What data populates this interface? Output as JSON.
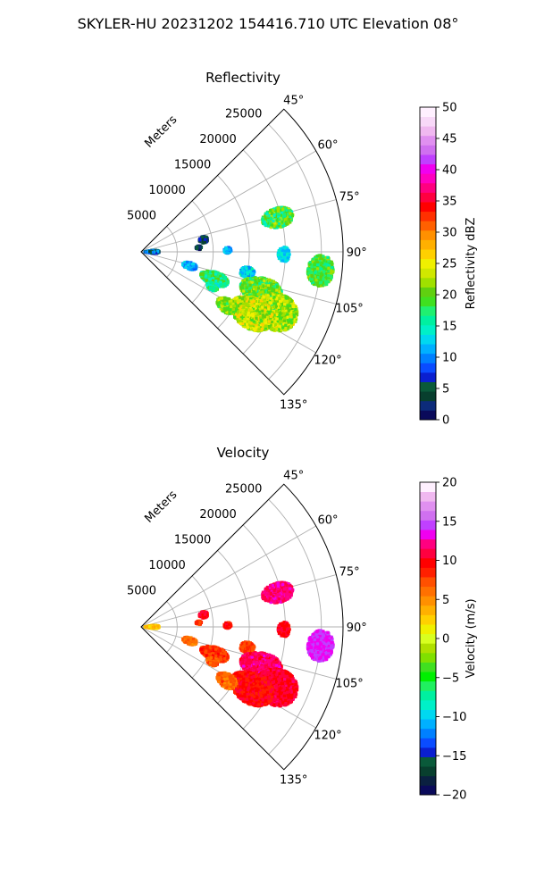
{
  "figure": {
    "suptitle": "SKYLER-HU  20231202  154416.710 UTC Elevation 08°"
  },
  "chart_data": [
    {
      "type": "heatmap",
      "projection": "polar-sector",
      "title": "Reflectivity",
      "radial_label": "Meters",
      "radial_ticks": [
        "5000",
        "10000",
        "15000",
        "20000",
        "25000"
      ],
      "azimuth_ticks": [
        "45°",
        "60°",
        "75°",
        "90°",
        "105°",
        "120°",
        "135°"
      ],
      "azimuth_range_deg": [
        45,
        135
      ],
      "range_max_m": 28000,
      "grid": true,
      "colorbar": {
        "label": "Reflectivity dBZ",
        "min": 0,
        "max": 50,
        "ticks": [
          "0",
          "5",
          "10",
          "15",
          "20",
          "25",
          "30",
          "35",
          "40",
          "45",
          "50"
        ],
        "colors": [
          "#0a0a5a",
          "#0c2b7a",
          "#083f2e",
          "#0a5a3a",
          "#0a1fd0",
          "#0a4cff",
          "#0080ff",
          "#00b0ff",
          "#00d8f0",
          "#00f0c8",
          "#00f0a0",
          "#20f070",
          "#40e020",
          "#60d010",
          "#a0e000",
          "#d0e800",
          "#f0f000",
          "#ffd000",
          "#ffb000",
          "#ff9000",
          "#ff6000",
          "#ff3000",
          "#ff0000",
          "#ff0040",
          "#ff0080",
          "#ff00c0",
          "#f000f0",
          "#c040ff",
          "#d070f0",
          "#e090f0",
          "#f0b8f0",
          "#f8d8f8",
          "#fff0ff"
        ]
      },
      "echoes": [
        {
          "az": 76,
          "r": 19500,
          "ar": 2200,
          "aa": 4,
          "value": 19,
          "spread": 5
        },
        {
          "az": 79,
          "r": 8800,
          "ar": 600,
          "aa": 3,
          "value": 4,
          "spread": 3
        },
        {
          "az": 86,
          "r": 8000,
          "ar": 400,
          "aa": 2,
          "value": 3,
          "spread": 2
        },
        {
          "az": 90,
          "r": 1500,
          "ar": 1000,
          "aa": 8,
          "value": 8,
          "spread": 6
        },
        {
          "az": 89,
          "r": 12000,
          "ar": 500,
          "aa": 2,
          "value": 11,
          "spread": 3
        },
        {
          "az": 91,
          "r": 19800,
          "ar": 800,
          "aa": 3,
          "value": 13,
          "spread": 2
        },
        {
          "az": 96,
          "r": 25000,
          "ar": 1800,
          "aa": 5,
          "value": 19,
          "spread": 3
        },
        {
          "az": 101,
          "r": 15000,
          "ar": 1000,
          "aa": 3,
          "value": 13,
          "spread": 3
        },
        {
          "az": 106,
          "r": 7000,
          "ar": 1000,
          "aa": 4,
          "value": 11,
          "spread": 3
        },
        {
          "az": 110,
          "r": 10800,
          "ar": 2000,
          "aa": 5,
          "value": 17,
          "spread": 4
        },
        {
          "az": 108,
          "r": 17500,
          "ar": 3000,
          "aa": 6,
          "value": 20,
          "spread": 4
        },
        {
          "az": 114,
          "r": 20500,
          "ar": 3000,
          "aa": 7,
          "value": 22,
          "spread": 4
        },
        {
          "az": 119,
          "r": 17500,
          "ar": 3200,
          "aa": 7,
          "value": 23,
          "spread": 4
        },
        {
          "az": 122,
          "r": 14000,
          "ar": 1500,
          "aa": 4,
          "value": 21,
          "spread": 3
        },
        {
          "az": 116,
          "r": 11000,
          "ar": 800,
          "aa": 3,
          "value": 16,
          "spread": 3
        }
      ]
    },
    {
      "type": "heatmap",
      "projection": "polar-sector",
      "title": "Velocity",
      "radial_label": "Meters",
      "radial_ticks": [
        "5000",
        "10000",
        "15000",
        "20000",
        "25000"
      ],
      "azimuth_ticks": [
        "45°",
        "60°",
        "75°",
        "90°",
        "105°",
        "120°",
        "135°"
      ],
      "azimuth_range_deg": [
        45,
        135
      ],
      "range_max_m": 28000,
      "grid": true,
      "colorbar": {
        "label": "Velocity (m/s)",
        "min": -20,
        "max": 20,
        "ticks": [
          "−20",
          "−15",
          "−10",
          "−5",
          "0",
          "5",
          "10",
          "15",
          "20"
        ],
        "colors": [
          "#0a0a5a",
          "#0a2040",
          "#083f2e",
          "#0a5a3a",
          "#0a1fd0",
          "#0a4cff",
          "#0080ff",
          "#00b0ff",
          "#00d8f0",
          "#00f0c8",
          "#00f0a0",
          "#20f060",
          "#00f000",
          "#40e020",
          "#80e000",
          "#b0e000",
          "#d8ff20",
          "#f0f000",
          "#ffd000",
          "#ffb000",
          "#ff9000",
          "#ff7000",
          "#ff5000",
          "#ff2000",
          "#ff0000",
          "#ff0040",
          "#ff0080",
          "#f000f0",
          "#c040ff",
          "#d070f0",
          "#e090f0",
          "#f0b8f0",
          "#fff0ff"
        ]
      },
      "echoes": [
        {
          "az": 76,
          "r": 19500,
          "ar": 2200,
          "aa": 4,
          "value": 12,
          "spread": 1.2
        },
        {
          "az": 79,
          "r": 8800,
          "ar": 600,
          "aa": 3,
          "value": 10,
          "spread": 1.2
        },
        {
          "az": 86,
          "r": 8000,
          "ar": 400,
          "aa": 2,
          "value": 8,
          "spread": 1
        },
        {
          "az": 90,
          "r": 1500,
          "ar": 1000,
          "aa": 8,
          "value": 3,
          "spread": 1.5
        },
        {
          "az": 89,
          "r": 12000,
          "ar": 500,
          "aa": 2,
          "value": 9,
          "spread": 1.5
        },
        {
          "az": 91,
          "r": 19800,
          "ar": 800,
          "aa": 3,
          "value": 10,
          "spread": 1
        },
        {
          "az": 96,
          "r": 25000,
          "ar": 1800,
          "aa": 5,
          "value": 14,
          "spread": 1
        },
        {
          "az": 101,
          "r": 15000,
          "ar": 1000,
          "aa": 3,
          "value": 8,
          "spread": 1
        },
        {
          "az": 106,
          "r": 7000,
          "ar": 1000,
          "aa": 4,
          "value": 6,
          "spread": 1.5
        },
        {
          "az": 110,
          "r": 10800,
          "ar": 2000,
          "aa": 5,
          "value": 8,
          "spread": 1.5
        },
        {
          "az": 108,
          "r": 17500,
          "ar": 3000,
          "aa": 6,
          "value": 11.5,
          "spread": 1.5
        },
        {
          "az": 114,
          "r": 20500,
          "ar": 3000,
          "aa": 7,
          "value": 10.5,
          "spread": 1.2
        },
        {
          "az": 119,
          "r": 17500,
          "ar": 3200,
          "aa": 7,
          "value": 9.5,
          "spread": 1.5
        },
        {
          "az": 122,
          "r": 14000,
          "ar": 1500,
          "aa": 4,
          "value": 6.5,
          "spread": 1.5
        },
        {
          "az": 116,
          "r": 11000,
          "ar": 800,
          "aa": 3,
          "value": 7,
          "spread": 1.5
        }
      ]
    }
  ]
}
